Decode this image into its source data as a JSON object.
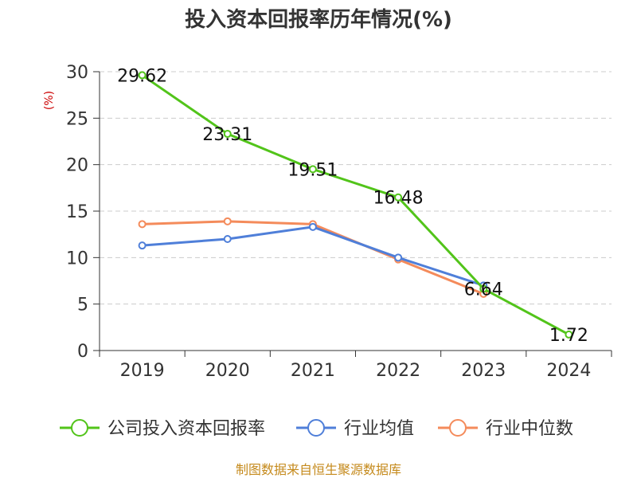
{
  "chart_data": {
    "type": "line",
    "title": "投入资本回报率历年情况(%)",
    "ylabel": "(%)",
    "xlabel": "",
    "categories": [
      "2019",
      "2020",
      "2021",
      "2022",
      "2023",
      "2024"
    ],
    "ylim": [
      0,
      30
    ],
    "yticks": [
      0,
      5,
      10,
      15,
      20,
      25,
      30
    ],
    "grid": true,
    "legend_position": "bottom",
    "series": [
      {
        "name": "公司投入资本回报率",
        "color": "#52c41a",
        "values": [
          29.62,
          23.31,
          19.51,
          16.48,
          6.64,
          1.72
        ],
        "labels": [
          "29.62",
          "23.31",
          "19.51",
          "16.48",
          "6.64",
          "1.72"
        ]
      },
      {
        "name": "行业均值",
        "color": "#4f7fd9",
        "values": [
          11.3,
          12.0,
          13.3,
          10.0,
          7.0,
          null
        ]
      },
      {
        "name": "行业中位数",
        "color": "#f48b5b",
        "values": [
          13.6,
          13.9,
          13.6,
          9.8,
          6.1,
          null
        ]
      }
    ]
  },
  "footer": {
    "source": "制图数据来自恒生聚源数据库"
  }
}
